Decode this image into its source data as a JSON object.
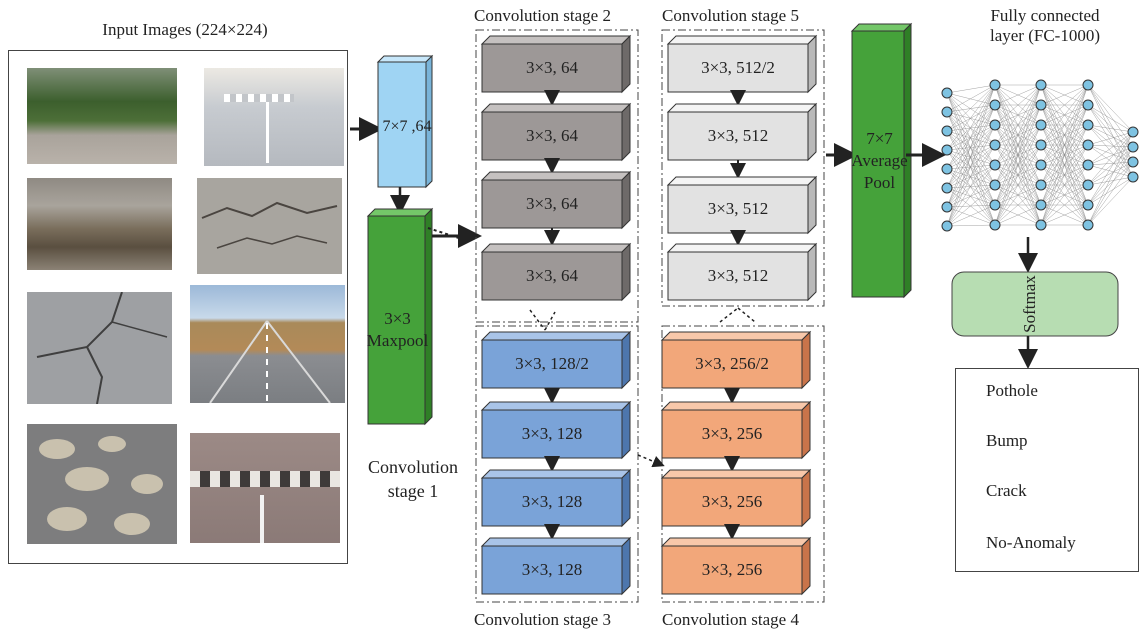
{
  "input": {
    "title": "Input Images (224×224)",
    "images": [
      "tree-lined-road-photo",
      "speed-bump-road-photo",
      "pothole-water-photo",
      "cracked-asphalt-photo",
      "cracked-asphalt-photo",
      "highway-road-photo",
      "multiple-potholes-photo",
      "speed-bump-stripes-photo"
    ]
  },
  "conv1": {
    "top": "7×7 ,64",
    "pool": "3×3\nMaxpool",
    "caption": "Convolution\nstage 1"
  },
  "stage2": {
    "title": "Convolution stage 2",
    "blocks": [
      "3×3, 64",
      "3×3, 64",
      "3×3, 64",
      "3×3, 64"
    ]
  },
  "stage3": {
    "title": "Convolution stage 3",
    "blocks": [
      "3×3, 128/2",
      "3×3, 128",
      "3×3, 128",
      "3×3, 128"
    ]
  },
  "stage4": {
    "title": "Convolution stage 4",
    "blocks": [
      "3×3, 256/2",
      "3×3, 256",
      "3×3, 256",
      "3×3, 256"
    ]
  },
  "stage5": {
    "title": "Convolution stage 5",
    "blocks": [
      "3×3, 512/2",
      "3×3, 512",
      "3×3, 512",
      "3×3, 512"
    ]
  },
  "avgpool": "7×7\nAverage\nPool",
  "fc": {
    "title": "Fully connected\nlayer (FC-1000)"
  },
  "softmax": "Softmax",
  "classes": [
    "Pothole",
    "Bump",
    "Crack",
    "No-Anomaly"
  ],
  "colors": {
    "gray_block": "#9d9897",
    "light_block": "#e2e2e2",
    "blue_block": "#7aa3d8",
    "orange_block": "#f2a77a",
    "green_block": "#45a23a",
    "lightblue_block": "#9fd4f3",
    "softmax_box": "#b7ddb2",
    "node": "#7ec3e2"
  }
}
